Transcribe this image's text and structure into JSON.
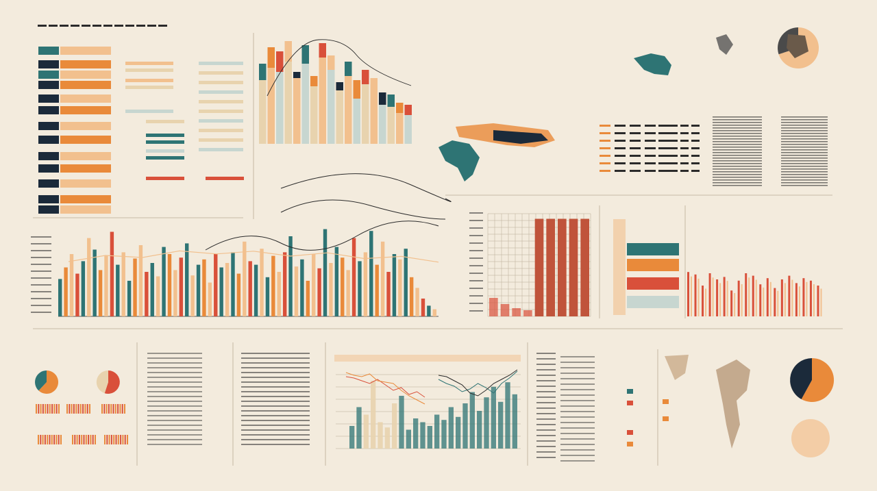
{
  "colors": {
    "background": "#f3ebdd",
    "teal": "#2e7474",
    "navy": "#1b2a3a",
    "orange": "#e98a3a",
    "red": "#d9503a",
    "peach": "#f2c08e",
    "sand": "#e8d3ae",
    "paleblue": "#c7d6d0",
    "ink": "#2a2a2a",
    "faint": "#b9ab95"
  },
  "chart_data": [
    {
      "type": "bar",
      "series": [
        {
          "values": [
            62,
            74,
            70,
            80,
            64,
            78,
            56,
            84,
            72,
            52,
            66,
            44,
            58,
            50,
            38,
            36,
            30,
            28
          ]
        },
        {
          "values": [
            78,
            94,
            90,
            100,
            70,
            96,
            66,
            98,
            86,
            60,
            80,
            62,
            72,
            64,
            50,
            48,
            40,
            38
          ]
        }
      ]
    },
    {
      "type": "bar",
      "values": [
        42,
        55,
        70,
        48,
        62,
        88,
        75,
        52,
        68,
        95,
        58,
        72,
        40,
        65,
        80,
        50,
        60,
        45,
        78,
        70,
        52,
        66,
        82,
        46,
        58,
        64,
        38,
        70,
        55,
        60,
        72,
        48,
        84,
        62,
        58,
        76,
        44,
        68,
        50,
        72,
        90,
        56,
        64,
        40,
        70,
        54,
        98,
        60,
        78,
        66,
        52,
        88,
        62,
        72,
        96,
        58,
        84,
        50,
        70,
        64,
        76,
        44,
        32,
        20,
        12,
        8
      ]
    },
    {
      "type": "line",
      "x": [
        0,
        1,
        2,
        3,
        4,
        5,
        6,
        7,
        8,
        9,
        10
      ],
      "series": [
        {
          "values": [
            40,
            55,
            70,
            88,
            96,
            86,
            80,
            74,
            62,
            48,
            36
          ]
        }
      ]
    },
    {
      "type": "bar",
      "values": [
        18,
        12,
        8,
        6,
        95,
        95,
        95,
        95,
        95
      ]
    },
    {
      "type": "bar",
      "values": [
        72,
        68,
        50,
        70,
        60,
        64,
        42,
        58,
        70,
        66,
        52,
        62,
        46,
        60,
        66,
        54,
        62,
        58,
        50
      ]
    },
    {
      "type": "bar",
      "values": [
        30,
        55,
        45,
        90,
        35,
        28,
        60,
        70,
        25,
        40,
        35,
        30,
        45,
        38,
        55,
        42,
        60,
        75,
        50,
        68,
        82,
        62,
        88,
        72
      ]
    },
    {
      "type": "line",
      "series": [
        {
          "values": [
            50,
            48,
            44,
            40,
            46,
            38,
            30,
            34,
            24,
            28,
            20
          ]
        },
        {
          "values": [
            56,
            52,
            50,
            54,
            44,
            42,
            40,
            30,
            22,
            16,
            10
          ]
        },
        {
          "values": [
            46,
            40,
            36,
            28,
            32,
            40,
            34,
            26,
            40,
            48,
            58
          ]
        },
        {
          "values": [
            52,
            50,
            44,
            38,
            26,
            22,
            30,
            40,
            46,
            52,
            60
          ]
        }
      ]
    },
    {
      "type": "pie",
      "values": [
        62,
        38
      ]
    },
    {
      "type": "pie",
      "values": [
        55,
        45
      ]
    },
    {
      "type": "pie",
      "values": [
        58,
        42
      ]
    },
    {
      "type": "pie",
      "values": [
        70,
        30
      ]
    }
  ]
}
